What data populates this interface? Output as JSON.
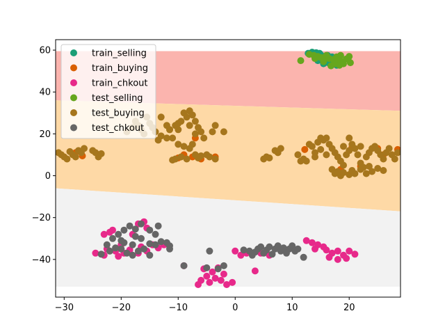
{
  "chart_data": {
    "type": "scatter",
    "title": "",
    "xlabel": "",
    "ylabel": "",
    "xlim": [
      -31.5,
      29
    ],
    "ylim": [
      -58,
      65
    ],
    "xticks": [
      -30,
      -20,
      -10,
      0,
      10,
      20
    ],
    "yticks": [
      -40,
      -20,
      0,
      20,
      40,
      60
    ],
    "xtick_labels": [
      "−30",
      "−20",
      "−10",
      "0",
      "10",
      "20"
    ],
    "ytick_labels": [
      "−40",
      "−20",
      "0",
      "20",
      "40",
      "60"
    ],
    "grid": false,
    "legend_position": "top-left",
    "regions": [
      {
        "color": "#fbb4ae",
        "polygon": [
          [
            -31.5,
            59.5
          ],
          [
            29,
            59.5
          ],
          [
            29,
            31
          ],
          [
            -31.5,
            36
          ]
        ]
      },
      {
        "color": "#fed9a6",
        "polygon": [
          [
            -31.5,
            36
          ],
          [
            29,
            31
          ],
          [
            29,
            -17
          ],
          [
            -31.5,
            -6
          ]
        ]
      },
      {
        "color": "#f2f2f2",
        "polygon": [
          [
            -31.5,
            -6
          ],
          [
            29,
            -17
          ],
          [
            29,
            -53
          ],
          [
            -31.5,
            -53
          ]
        ]
      }
    ],
    "series": [
      {
        "name": "train_selling",
        "color": "#1b9e77",
        "points": [
          [
            12.8,
            58.5
          ],
          [
            13.5,
            59
          ],
          [
            14.2,
            58.8
          ],
          [
            14.8,
            58.5
          ],
          [
            13.9,
            57.5
          ],
          [
            15.2,
            56.5
          ],
          [
            15.8,
            55.2
          ],
          [
            16.3,
            54
          ],
          [
            15.5,
            53.5
          ],
          [
            16.8,
            53
          ],
          [
            17.5,
            54.5
          ],
          [
            18,
            55.5
          ],
          [
            17,
            56.8
          ],
          [
            16.2,
            57.5
          ],
          [
            15,
            57.8
          ],
          [
            18.5,
            53.5
          ],
          [
            14.5,
            55
          ],
          [
            17.8,
            52.8
          ]
        ]
      },
      {
        "name": "train_buying",
        "color": "#d95f02",
        "points": [
          [
            -26.8,
            9.5
          ],
          [
            -28,
            11
          ],
          [
            -7,
            18
          ],
          [
            -10,
            8.5
          ],
          [
            -9,
            10
          ],
          [
            -7.5,
            9
          ],
          [
            12.2,
            12.5
          ],
          [
            20.5,
            13.5
          ],
          [
            25,
            13
          ],
          [
            28.5,
            12.5
          ],
          [
            18.5,
            3
          ],
          [
            22,
            4.5
          ],
          [
            26,
            10
          ],
          [
            -6,
            8
          ],
          [
            -3.5,
            9
          ]
        ]
      },
      {
        "name": "train_chkout",
        "color": "#e7298a",
        "points": [
          [
            -24.5,
            -37
          ],
          [
            -23,
            -38
          ],
          [
            -22.5,
            -35
          ],
          [
            -21,
            -36
          ],
          [
            -20,
            -33
          ],
          [
            -19.5,
            -37
          ],
          [
            -18.5,
            -35.5
          ],
          [
            -17,
            -37
          ],
          [
            -16.5,
            -34
          ],
          [
            -15.5,
            -36
          ],
          [
            -14.5,
            -33
          ],
          [
            -13.5,
            -34.5
          ],
          [
            -12.5,
            -33
          ],
          [
            -16,
            -22
          ],
          [
            -15.5,
            -25
          ],
          [
            -17,
            -23
          ],
          [
            -18,
            -28
          ],
          [
            -9,
            -43
          ],
          [
            -6,
            -50
          ],
          [
            -5,
            -48
          ],
          [
            -4.5,
            -51
          ],
          [
            -3.5,
            -49
          ],
          [
            -2.5,
            -50
          ],
          [
            -1.5,
            -52
          ],
          [
            -0.5,
            -51
          ],
          [
            -4,
            -46
          ],
          [
            -3,
            -44
          ],
          [
            -5.5,
            -44.5
          ],
          [
            -2,
            -47
          ],
          [
            -6.5,
            -52
          ],
          [
            0,
            -36
          ],
          [
            1,
            -38
          ],
          [
            2,
            -37
          ],
          [
            3.5,
            -45.5
          ],
          [
            4.5,
            -37
          ],
          [
            6,
            -38
          ],
          [
            12.5,
            -31
          ],
          [
            13.5,
            -32
          ],
          [
            14.5,
            -33
          ],
          [
            15.5,
            -34
          ],
          [
            14,
            -35
          ],
          [
            16,
            -35.5
          ],
          [
            17,
            -37
          ],
          [
            18,
            -36
          ],
          [
            19,
            -38
          ],
          [
            20,
            -36
          ],
          [
            21,
            -37.5
          ],
          [
            16.5,
            -39
          ],
          [
            18,
            -40
          ],
          [
            19.5,
            -39.5
          ],
          [
            -22,
            -27
          ],
          [
            -23,
            -28
          ],
          [
            -21.5,
            -26
          ],
          [
            -20.5,
            -38.5
          ]
        ]
      },
      {
        "name": "test_selling",
        "color": "#66a61e",
        "points": [
          [
            11.5,
            55
          ],
          [
            13,
            58
          ],
          [
            13.8,
            57.5
          ],
          [
            14.5,
            57
          ],
          [
            15,
            56.5
          ],
          [
            15.8,
            56.8
          ],
          [
            16.5,
            56
          ],
          [
            17.2,
            55.5
          ],
          [
            18,
            55
          ],
          [
            18.8,
            54.5
          ],
          [
            19.5,
            55.8
          ],
          [
            20,
            57
          ],
          [
            19.8,
            56
          ],
          [
            17.5,
            53.5
          ],
          [
            18.3,
            52.8
          ],
          [
            16.8,
            52.5
          ],
          [
            15.5,
            54.5
          ],
          [
            14,
            56
          ],
          [
            19,
            53.5
          ],
          [
            20.2,
            54
          ],
          [
            16,
            57.5
          ],
          [
            17.8,
            56.8
          ],
          [
            18.5,
            57.5
          ]
        ]
      },
      {
        "name": "test_buying",
        "color": "#a6761d",
        "points": [
          [
            -31,
            11
          ],
          [
            -30.5,
            10
          ],
          [
            -30,
            9
          ],
          [
            -29.5,
            8
          ],
          [
            -29,
            11.5
          ],
          [
            -28.5,
            10
          ],
          [
            -28,
            9
          ],
          [
            -27.5,
            12
          ],
          [
            -27,
            11
          ],
          [
            -26.5,
            13
          ],
          [
            -25,
            12
          ],
          [
            -24.5,
            11
          ],
          [
            -24,
            9
          ],
          [
            -23.5,
            10.5
          ],
          [
            -19,
            21
          ],
          [
            -18,
            23
          ],
          [
            -17.5,
            26
          ],
          [
            -17,
            24
          ],
          [
            -16.5,
            22
          ],
          [
            -16,
            20
          ],
          [
            -15.5,
            28
          ],
          [
            -15,
            25
          ],
          [
            -14.5,
            23
          ],
          [
            -14,
            21
          ],
          [
            -13.5,
            17
          ],
          [
            -13,
            19
          ],
          [
            -12,
            24
          ],
          [
            -11.5,
            22
          ],
          [
            -11,
            18
          ],
          [
            -10.5,
            24
          ],
          [
            -10,
            22
          ],
          [
            -9.5,
            26
          ],
          [
            -9,
            30
          ],
          [
            -8.5,
            28
          ],
          [
            -8,
            31
          ],
          [
            -7.5,
            29
          ],
          [
            -7,
            26
          ],
          [
            -6.5,
            23
          ],
          [
            -6,
            21
          ],
          [
            -5.5,
            18
          ],
          [
            -8,
            24
          ],
          [
            -7,
            20
          ],
          [
            -9,
            14
          ],
          [
            -8,
            13
          ],
          [
            -10,
            15
          ],
          [
            -7.5,
            15
          ],
          [
            -11,
            7.5
          ],
          [
            -10.5,
            8
          ],
          [
            -9.5,
            9
          ],
          [
            -8.5,
            8
          ],
          [
            -7,
            10
          ],
          [
            -6.5,
            8.5
          ],
          [
            -6,
            9.5
          ],
          [
            -5,
            10
          ],
          [
            -4.5,
            9
          ],
          [
            -3.5,
            8
          ],
          [
            -4,
            21
          ],
          [
            -3.5,
            24
          ],
          [
            -2,
            21
          ],
          [
            -12,
            18
          ],
          [
            -11.5,
            22
          ],
          [
            -10,
            25
          ],
          [
            -13,
            28
          ],
          [
            5,
            8
          ],
          [
            5.5,
            9
          ],
          [
            6,
            8.5
          ],
          [
            7,
            12
          ],
          [
            7.5,
            11
          ],
          [
            8,
            13
          ],
          [
            11,
            10
          ],
          [
            11.5,
            7
          ],
          [
            12,
            8
          ],
          [
            12.5,
            7
          ],
          [
            13,
            15
          ],
          [
            13.5,
            14
          ],
          [
            14,
            11
          ],
          [
            14.5,
            16
          ],
          [
            15,
            18
          ],
          [
            15.5,
            17
          ],
          [
            16,
            18
          ],
          [
            16.5,
            15
          ],
          [
            17,
            13
          ],
          [
            17.5,
            11
          ],
          [
            18,
            9
          ],
          [
            18.5,
            7
          ],
          [
            19,
            5
          ],
          [
            19.5,
            10
          ],
          [
            20,
            12
          ],
          [
            20.5,
            15
          ],
          [
            21,
            13
          ],
          [
            21.5,
            10
          ],
          [
            22,
            6
          ],
          [
            22.5,
            4
          ],
          [
            23,
            9
          ],
          [
            23.5,
            11
          ],
          [
            24,
            13
          ],
          [
            24.5,
            14
          ],
          [
            25,
            12
          ],
          [
            25.5,
            10
          ],
          [
            26,
            8
          ],
          [
            26.5,
            11
          ],
          [
            27,
            13
          ],
          [
            27.5,
            10
          ],
          [
            28,
            8
          ],
          [
            28.5,
            11
          ],
          [
            17,
            3
          ],
          [
            17.5,
            1
          ],
          [
            18,
            2
          ],
          [
            18.5,
            0
          ],
          [
            19,
            1.5
          ],
          [
            20,
            0.5
          ],
          [
            20.5,
            2.5
          ],
          [
            21,
            1
          ],
          [
            22,
            3
          ],
          [
            23,
            1
          ],
          [
            23.5,
            4.5
          ],
          [
            24,
            2
          ],
          [
            25,
            3.5
          ],
          [
            26,
            2.5
          ],
          [
            15,
            12.5
          ],
          [
            16,
            10
          ],
          [
            14,
            9
          ],
          [
            19,
            14
          ],
          [
            20,
            18
          ],
          [
            22,
            14
          ]
        ]
      },
      {
        "name": "test_chkout",
        "color": "#666666",
        "points": [
          [
            -23.5,
            -37.5
          ],
          [
            -22,
            -36
          ],
          [
            -21,
            -34.5
          ],
          [
            -20,
            -35
          ],
          [
            -19,
            -37
          ],
          [
            -19.5,
            -32
          ],
          [
            -18,
            -33
          ],
          [
            -17,
            -36
          ],
          [
            -16,
            -35
          ],
          [
            -15,
            -32.5
          ],
          [
            -14,
            -33
          ],
          [
            -13,
            -31.5
          ],
          [
            -12,
            -32
          ],
          [
            -11.5,
            -33.5
          ],
          [
            -21.5,
            -30
          ],
          [
            -20.5,
            -28
          ],
          [
            -19.5,
            -26
          ],
          [
            -18.5,
            -24
          ],
          [
            -17.5,
            -25.5
          ],
          [
            -16.5,
            -23
          ],
          [
            -15,
            -26
          ],
          [
            -14,
            -28
          ],
          [
            -13.5,
            -24
          ],
          [
            -22.5,
            -33
          ],
          [
            -18,
            -38
          ],
          [
            -15,
            -38
          ],
          [
            -11.5,
            -35
          ],
          [
            -9,
            -43
          ],
          [
            -5,
            -44
          ],
          [
            -4.5,
            -36
          ],
          [
            -3,
            -44.5
          ],
          [
            -2,
            -43
          ],
          [
            1.5,
            -35.5
          ],
          [
            2.5,
            -36
          ],
          [
            3,
            -38
          ],
          [
            3.5,
            -36.5
          ],
          [
            4,
            -35
          ],
          [
            4.5,
            -34
          ],
          [
            5,
            -37
          ],
          [
            5.5,
            -35.5
          ],
          [
            6,
            -34
          ],
          [
            6.5,
            -37.5
          ],
          [
            7,
            -35
          ],
          [
            7.5,
            -33.5
          ],
          [
            8,
            -36
          ],
          [
            8.5,
            -34.5
          ],
          [
            9,
            -37
          ],
          [
            9.5,
            -35
          ],
          [
            10,
            -33.5
          ],
          [
            10.5,
            -36
          ],
          [
            11,
            -35
          ],
          [
            12,
            -39
          ],
          [
            -17.5,
            -29
          ],
          [
            -20,
            -31
          ],
          [
            -16.5,
            -30
          ]
        ]
      }
    ]
  }
}
